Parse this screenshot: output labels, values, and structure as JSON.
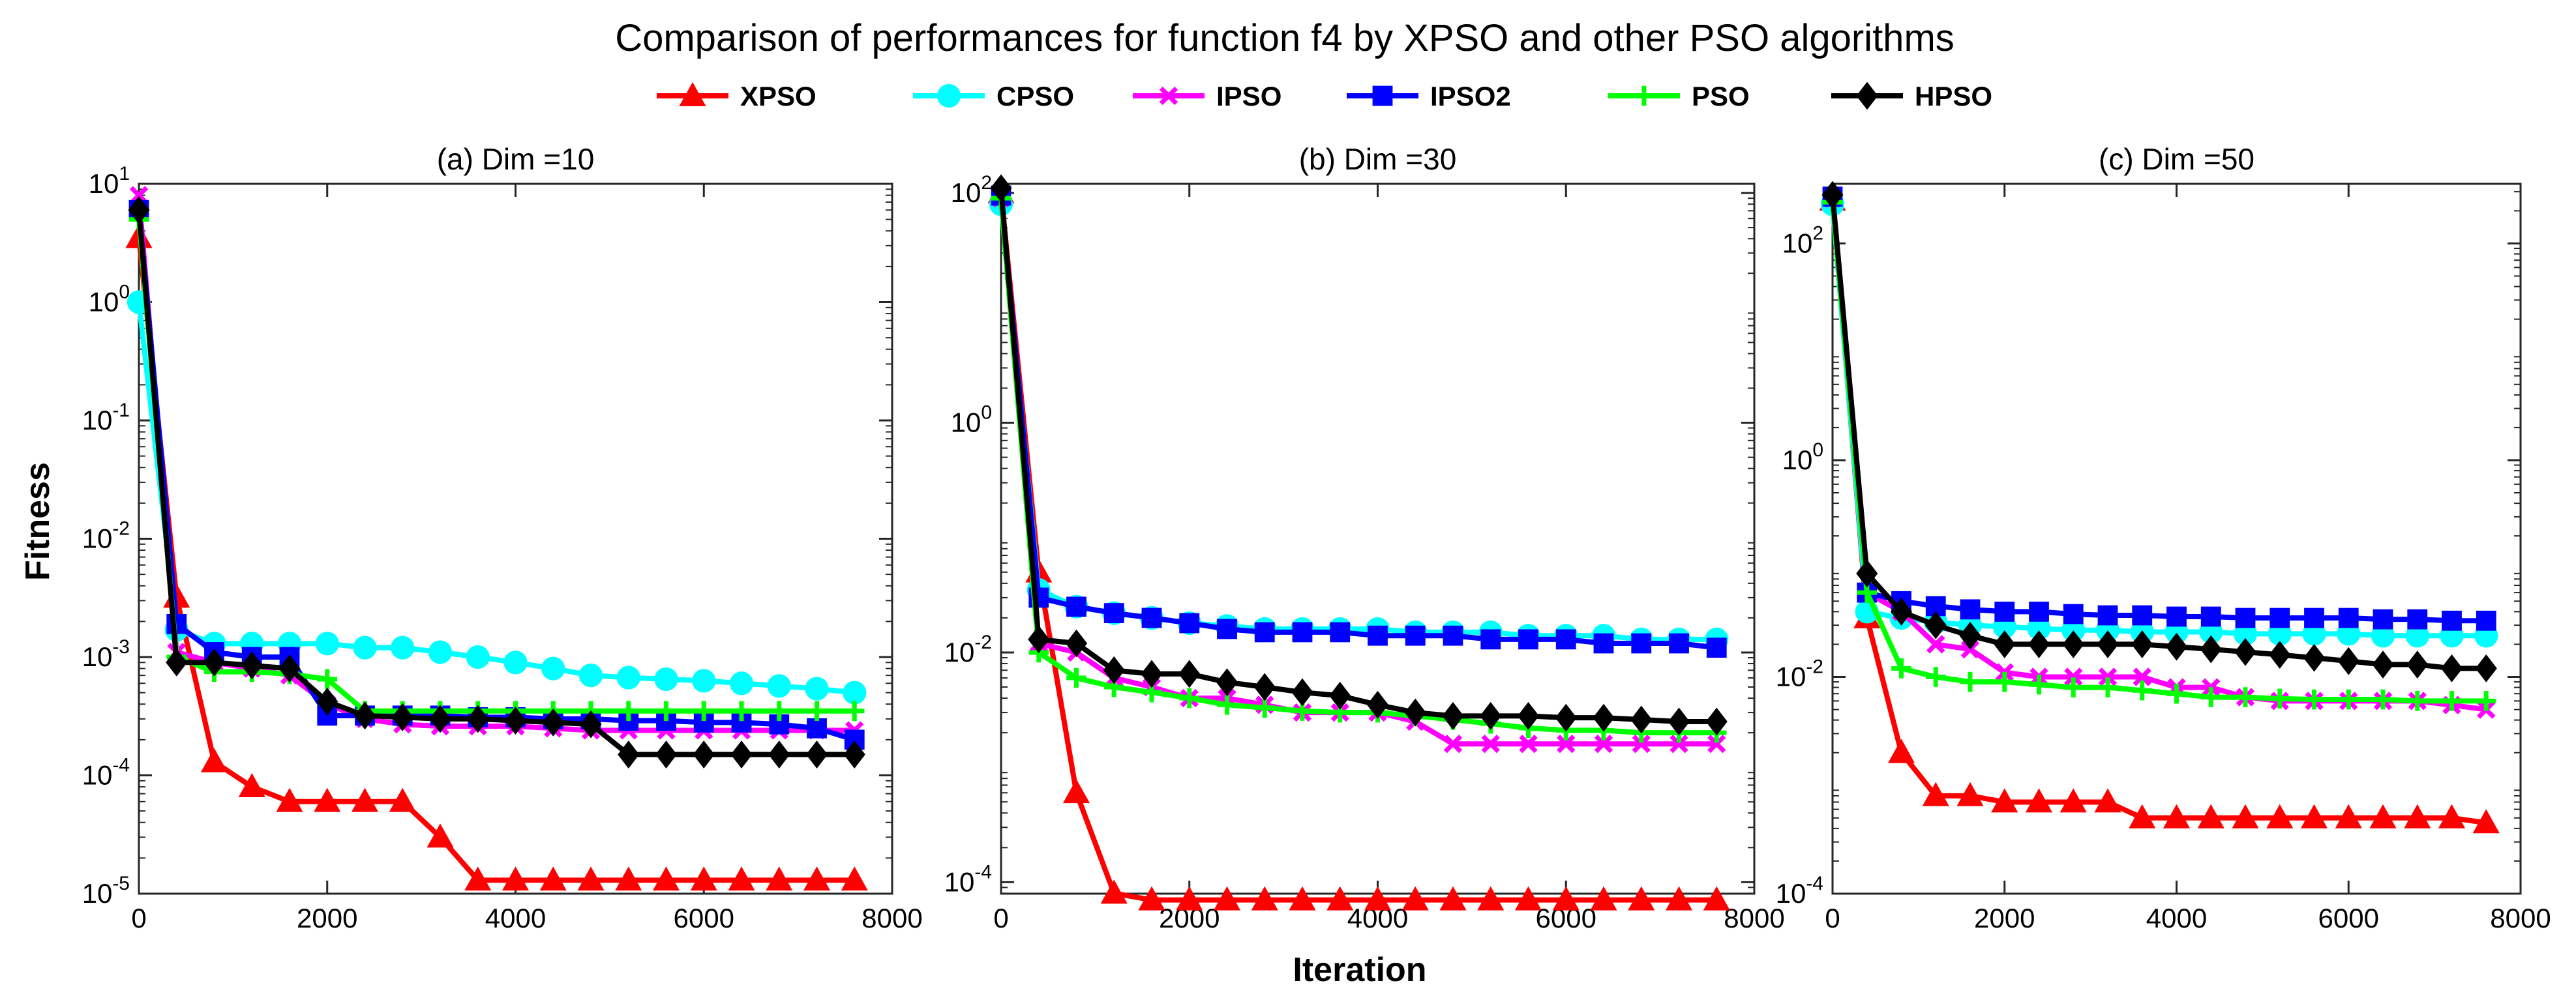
{
  "chart_data": {
    "type": "line",
    "title": "Comparison of performances for function f4 by XPSO and other PSO algorithms",
    "xlabel": "Iteration",
    "ylabel": "Fitness",
    "legend": {
      "placement": "top-center",
      "entries": [
        {
          "name": "XPSO",
          "color": "#ff0000",
          "marker": "triangle"
        },
        {
          "name": "CPSO",
          "color": "#00ffff",
          "marker": "circle"
        },
        {
          "name": "IPSO",
          "color": "#ff00ff",
          "marker": "x"
        },
        {
          "name": "IPSO2",
          "color": "#0000ff",
          "marker": "square"
        },
        {
          "name": "PSO",
          "color": "#00ff00",
          "marker": "plus"
        },
        {
          "name": "HPSO",
          "color": "#000000",
          "marker": "diamond"
        }
      ]
    },
    "panels": [
      {
        "title": "(a) Dim =10",
        "yscale": "log",
        "xlim": [
          0,
          8000
        ],
        "ylim_exp": [
          -5,
          1
        ],
        "x_ticks": [
          "0",
          "2000",
          "4000",
          "6000",
          "8000"
        ],
        "y_ticks": [
          {
            "base": "10",
            "exp": "-5"
          },
          {
            "base": "10",
            "exp": "-4"
          },
          {
            "base": "10",
            "exp": "-3"
          },
          {
            "base": "10",
            "exp": "-2"
          },
          {
            "base": "10",
            "exp": "-1"
          },
          {
            "base": "10",
            "exp": "0"
          },
          {
            "base": "10",
            "exp": "1"
          }
        ],
        "x": [
          0,
          400,
          800,
          1200,
          1600,
          2000,
          2400,
          2800,
          3200,
          3600,
          4000,
          4400,
          4800,
          5200,
          5600,
          6000,
          6400,
          6800,
          7200,
          7600
        ],
        "series": [
          {
            "name": "XPSO",
            "values": [
              3.5,
              0.0032,
              0.00013,
              8e-05,
              6e-05,
              6e-05,
              6e-05,
              6e-05,
              3e-05,
              1.3e-05,
              1.3e-05,
              1.3e-05,
              1.3e-05,
              1.3e-05,
              1.3e-05,
              1.3e-05,
              1.3e-05,
              1.3e-05,
              1.3e-05,
              1.3e-05
            ]
          },
          {
            "name": "CPSO",
            "values": [
              1.0,
              0.0017,
              0.0013,
              0.0013,
              0.0013,
              0.0013,
              0.0012,
              0.0012,
              0.0011,
              0.001,
              0.0009,
              0.0008,
              0.0007,
              0.00067,
              0.00065,
              0.00063,
              0.0006,
              0.00057,
              0.00054,
              0.0005
            ]
          },
          {
            "name": "IPSO",
            "values": [
              8.0,
              0.0011,
              0.0009,
              0.0008,
              0.0007,
              0.0004,
              0.0003,
              0.00027,
              0.00026,
              0.00026,
              0.00026,
              0.00025,
              0.00024,
              0.00024,
              0.00024,
              0.00024,
              0.00024,
              0.00024,
              0.00024,
              0.00024
            ]
          },
          {
            "name": "IPSO2",
            "values": [
              6.0,
              0.0019,
              0.0011,
              0.001,
              0.001,
              0.00032,
              0.00032,
              0.00032,
              0.00032,
              0.00031,
              0.00031,
              0.0003,
              0.0003,
              0.00029,
              0.00029,
              0.00028,
              0.00028,
              0.00027,
              0.00025,
              0.0002
            ]
          },
          {
            "name": "PSO",
            "values": [
              5.0,
              0.001,
              0.00075,
              0.00075,
              0.00072,
              0.00065,
              0.00035,
              0.00035,
              0.00035,
              0.00035,
              0.00035,
              0.00035,
              0.00035,
              0.00035,
              0.00035,
              0.00035,
              0.00035,
              0.00035,
              0.00035,
              0.00035
            ]
          },
          {
            "name": "HPSO",
            "values": [
              6.0,
              0.0009,
              0.0009,
              0.00085,
              0.0008,
              0.00042,
              0.00032,
              0.00031,
              0.0003,
              0.0003,
              0.00029,
              0.00028,
              0.00027,
              0.00015,
              0.00015,
              0.00015,
              0.00015,
              0.00015,
              0.00015,
              0.00015
            ]
          }
        ]
      },
      {
        "title": "(b) Dim =30",
        "yscale": "log",
        "xlim": [
          0,
          8000
        ],
        "ylim_exp": [
          -4.1,
          2.08
        ],
        "x_ticks": [
          "0",
          "2000",
          "4000",
          "6000",
          "8000"
        ],
        "y_ticks": [
          {
            "base": "10",
            "exp": "-4"
          },
          {
            "base": "10",
            "exp": "-2"
          },
          {
            "base": "10",
            "exp": "0"
          },
          {
            "base": "10",
            "exp": "2"
          }
        ],
        "x": [
          0,
          400,
          800,
          1200,
          1600,
          2000,
          2400,
          2800,
          3200,
          3600,
          4000,
          4400,
          4800,
          5200,
          5600,
          6000,
          6400,
          6800,
          7200,
          7600
        ],
        "series": [
          {
            "name": "XPSO",
            "values": [
              100,
              0.05,
              0.0006,
              8e-05,
              7e-05,
              7e-05,
              7e-05,
              7e-05,
              7e-05,
              7e-05,
              7e-05,
              7e-05,
              7e-05,
              7e-05,
              7e-05,
              7e-05,
              7e-05,
              7e-05,
              7e-05,
              7e-05
            ]
          },
          {
            "name": "CPSO",
            "values": [
              80,
              0.035,
              0.025,
              0.022,
              0.02,
              0.018,
              0.017,
              0.016,
              0.016,
              0.016,
              0.016,
              0.015,
              0.015,
              0.015,
              0.014,
              0.014,
              0.014,
              0.013,
              0.013,
              0.013
            ]
          },
          {
            "name": "IPSO",
            "values": [
              90,
              0.012,
              0.01,
              0.006,
              0.005,
              0.004,
              0.004,
              0.0035,
              0.003,
              0.003,
              0.003,
              0.0025,
              0.0016,
              0.0016,
              0.0016,
              0.0016,
              0.0016,
              0.0016,
              0.0016,
              0.0016
            ]
          },
          {
            "name": "IPSO2",
            "values": [
              95,
              0.03,
              0.025,
              0.022,
              0.02,
              0.018,
              0.016,
              0.015,
              0.015,
              0.015,
              0.014,
              0.014,
              0.014,
              0.013,
              0.013,
              0.013,
              0.012,
              0.012,
              0.012,
              0.011
            ]
          },
          {
            "name": "PSO",
            "values": [
              90,
              0.01,
              0.006,
              0.005,
              0.0045,
              0.004,
              0.0035,
              0.0033,
              0.0031,
              0.003,
              0.003,
              0.0028,
              0.0026,
              0.0024,
              0.0022,
              0.0021,
              0.0021,
              0.002,
              0.002,
              0.002
            ]
          },
          {
            "name": "HPSO",
            "values": [
              110,
              0.013,
              0.012,
              0.007,
              0.0065,
              0.0065,
              0.0055,
              0.005,
              0.0045,
              0.0042,
              0.0035,
              0.003,
              0.0028,
              0.0028,
              0.0028,
              0.0027,
              0.0027,
              0.0026,
              0.0025,
              0.0025
            ]
          }
        ]
      },
      {
        "title": "(c) Dim =50",
        "yscale": "log",
        "xlim": [
          0,
          8000
        ],
        "ylim_exp": [
          -4,
          2.55
        ],
        "x_ticks": [
          "0",
          "2000",
          "4000",
          "6000",
          "8000"
        ],
        "y_ticks": [
          {
            "base": "10",
            "exp": "-4"
          },
          {
            "base": "10",
            "exp": "-2"
          },
          {
            "base": "10",
            "exp": "0"
          },
          {
            "base": "10",
            "exp": "2"
          }
        ],
        "x": [
          0,
          400,
          800,
          1200,
          1600,
          2000,
          2400,
          2800,
          3200,
          3600,
          4000,
          4400,
          4800,
          5200,
          5600,
          6000,
          6400,
          6800,
          7200,
          7600
        ],
        "series": [
          {
            "name": "XPSO",
            "values": [
              250,
              0.035,
              0.002,
              0.0008,
              0.0008,
              0.0007,
              0.0007,
              0.0007,
              0.0007,
              0.0005,
              0.0005,
              0.0005,
              0.0005,
              0.0005,
              0.0005,
              0.0005,
              0.0005,
              0.0005,
              0.0005,
              0.00045
            ]
          },
          {
            "name": "CPSO",
            "values": [
              230,
              0.04,
              0.035,
              0.032,
              0.03,
              0.029,
              0.028,
              0.027,
              0.027,
              0.026,
              0.026,
              0.026,
              0.025,
              0.025,
              0.025,
              0.025,
              0.024,
              0.024,
              0.024,
              0.024
            ]
          },
          {
            "name": "IPSO",
            "values": [
              260,
              0.06,
              0.04,
              0.02,
              0.018,
              0.011,
              0.01,
              0.01,
              0.01,
              0.01,
              0.008,
              0.008,
              0.0065,
              0.006,
              0.006,
              0.006,
              0.006,
              0.006,
              0.0055,
              0.005
            ]
          },
          {
            "name": "IPSO2",
            "values": [
              270,
              0.06,
              0.05,
              0.045,
              0.042,
              0.04,
              0.04,
              0.038,
              0.037,
              0.037,
              0.036,
              0.036,
              0.035,
              0.035,
              0.035,
              0.035,
              0.034,
              0.034,
              0.033,
              0.033
            ]
          },
          {
            "name": "PSO",
            "values": [
              240,
              0.06,
              0.012,
              0.01,
              0.009,
              0.009,
              0.0085,
              0.008,
              0.008,
              0.0075,
              0.007,
              0.0065,
              0.0065,
              0.0063,
              0.0062,
              0.0062,
              0.0062,
              0.006,
              0.006,
              0.006
            ]
          },
          {
            "name": "HPSO",
            "values": [
              280,
              0.09,
              0.04,
              0.03,
              0.024,
              0.02,
              0.02,
              0.02,
              0.02,
              0.02,
              0.019,
              0.018,
              0.017,
              0.016,
              0.015,
              0.014,
              0.013,
              0.013,
              0.012,
              0.012
            ]
          }
        ]
      }
    ]
  }
}
